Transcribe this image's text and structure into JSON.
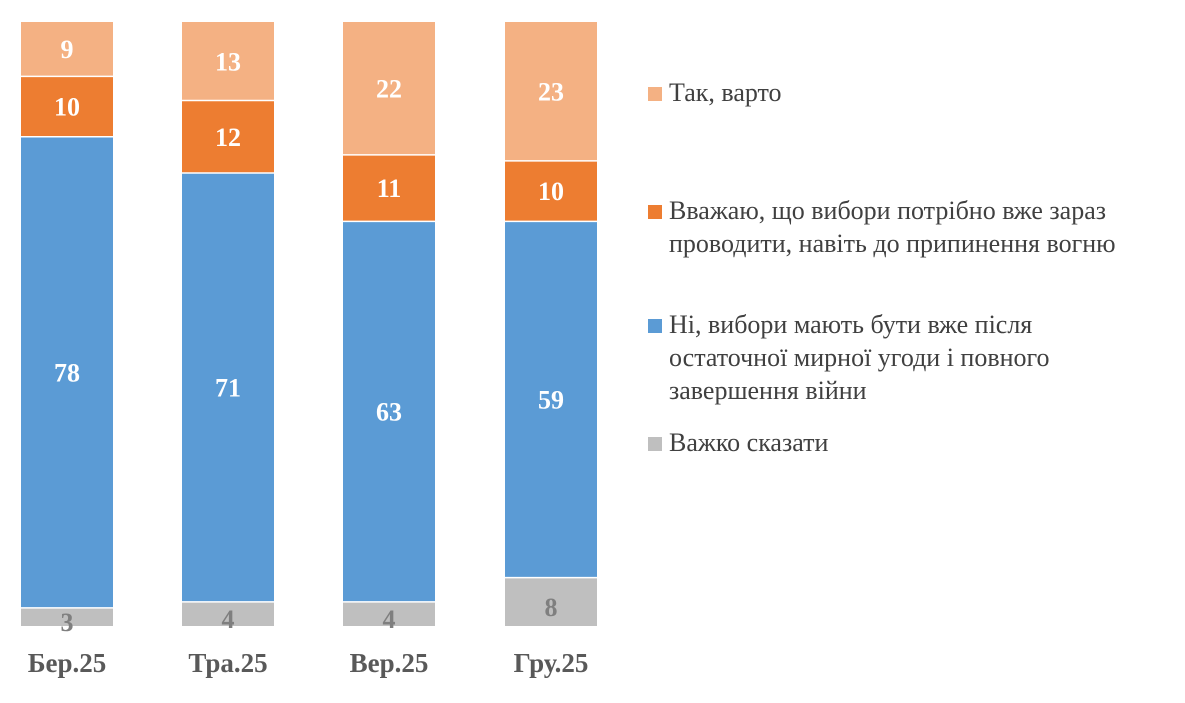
{
  "chart_data": {
    "type": "bar",
    "stacked": true,
    "categories": [
      "Бер.25",
      "Тра.25",
      "Вер.25",
      "Гру.25"
    ],
    "series": [
      {
        "name": "Важко сказати",
        "color": "#bfbfbf",
        "label_color": "#7f7f7f",
        "values": [
          3,
          4,
          4,
          8
        ]
      },
      {
        "name": "Ні, вибори мають бути вже після остаточної мирної угоди і повного завершення війни",
        "color": "#5b9bd5",
        "label_color": "#ffffff",
        "values": [
          78,
          71,
          63,
          59
        ]
      },
      {
        "name": "Вважаю, що вибори потрібно вже зараз проводити, навіть до припинення вогню",
        "color": "#ed7d31",
        "label_color": "#ffffff",
        "values": [
          10,
          12,
          11,
          10
        ]
      },
      {
        "name": "Так, варто",
        "color": "#f4b183",
        "label_color": "#ffffff",
        "values": [
          9,
          13,
          22,
          23
        ]
      }
    ],
    "legend": {
      "position": "right",
      "items": [
        {
          "series": 3,
          "lines": [
            "Так, варто"
          ]
        },
        {
          "series": 2,
          "lines": [
            "Вважаю, що вибори потрібно вже зараз",
            "проводити, навіть до припинення вогню"
          ]
        },
        {
          "series": 1,
          "lines": [
            "Ні, вибори мають бути вже після",
            "остаточної мирної угоди і повного",
            "завершення війни"
          ]
        },
        {
          "series": 0,
          "lines": [
            "Важко сказати"
          ]
        }
      ]
    },
    "ylim": [
      0,
      100
    ],
    "grid": false,
    "title": "",
    "xlabel": "",
    "ylabel": ""
  }
}
